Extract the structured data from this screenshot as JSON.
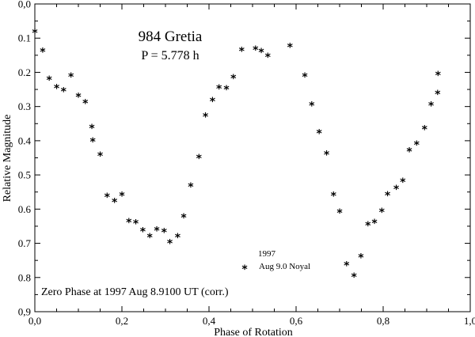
{
  "chart_data": {
    "type": "scatter",
    "title": "984 Gretia",
    "subtitle": "P = 5.778 h",
    "xlabel": "Phase of Rotation",
    "ylabel": "Relative Magnitude",
    "xlim": [
      0.0,
      1.0
    ],
    "ylim": [
      0.0,
      0.9
    ],
    "y_inverted": true,
    "grid": false,
    "x_ticks": [
      0.0,
      0.2,
      0.4,
      0.6,
      0.8,
      1.0
    ],
    "x_tick_labels": [
      "0,0",
      "0,2",
      "0,4",
      "0,6",
      "0,8",
      "1,0"
    ],
    "y_ticks": [
      0.0,
      0.1,
      0.2,
      0.3,
      0.4,
      0.5,
      0.6,
      0.7,
      0.8,
      0.9
    ],
    "y_tick_labels": [
      "0,0",
      "0.1",
      "0.2",
      "0.3",
      "0.4",
      "0.5",
      "0.6",
      "0.7",
      "0.8",
      "0,9"
    ],
    "legend": {
      "placement": "lower-center",
      "year": "1997",
      "entry": "Aug 9.0 Noyal",
      "marker_symbol": "*"
    },
    "annotation": "Zero Phase at 1997 Aug 8.9100 UT (corr.)",
    "marker_symbol": "*",
    "series": [
      {
        "name": "Aug 9.0 Noyal",
        "x": [
          0.0,
          0.018,
          0.033,
          0.05,
          0.066,
          0.083,
          0.1,
          0.116,
          0.131,
          0.133,
          0.15,
          0.166,
          0.183,
          0.2,
          0.216,
          0.232,
          0.248,
          0.264,
          0.28,
          0.297,
          0.31,
          0.328,
          0.342,
          0.358,
          0.377,
          0.392,
          0.408,
          0.423,
          0.44,
          0.456,
          0.475,
          0.507,
          0.52,
          0.535,
          0.586,
          0.62,
          0.636,
          0.653,
          0.67,
          0.686,
          0.7,
          0.716,
          0.733,
          0.749,
          0.765,
          0.78,
          0.797,
          0.81,
          0.83,
          0.845,
          0.86,
          0.877,
          0.895,
          0.91,
          0.925,
          0.926
        ],
        "y": [
          0.085,
          0.14,
          0.222,
          0.246,
          0.256,
          0.213,
          0.272,
          0.29,
          0.363,
          0.403,
          0.444,
          0.565,
          0.58,
          0.561,
          0.638,
          0.642,
          0.665,
          0.683,
          0.663,
          0.668,
          0.7,
          0.683,
          0.625,
          0.535,
          0.451,
          0.33,
          0.285,
          0.248,
          0.25,
          0.217,
          0.138,
          0.134,
          0.141,
          0.155,
          0.126,
          0.213,
          0.297,
          0.378,
          0.441,
          0.561,
          0.611,
          0.765,
          0.798,
          0.742,
          0.648,
          0.641,
          0.608,
          0.56,
          0.541,
          0.521,
          0.432,
          0.412,
          0.367,
          0.297,
          0.264,
          0.208
        ]
      }
    ]
  }
}
